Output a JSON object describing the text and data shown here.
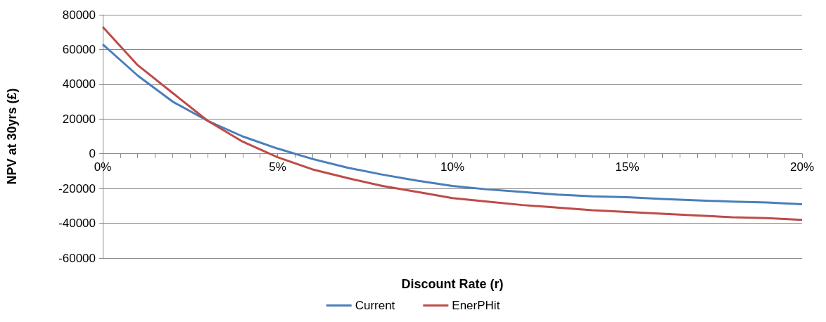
{
  "chart_data": {
    "type": "line",
    "xlabel": "Discount Rate (r)",
    "ylabel": "NPV at 30yrs (£)",
    "x": [
      0,
      0.5,
      1,
      2,
      3,
      4,
      5,
      6,
      7,
      8,
      9,
      10,
      11,
      12,
      13,
      14,
      15,
      16,
      17,
      18,
      19,
      20
    ],
    "series": [
      {
        "name": "Current",
        "color": "#4a7ebb",
        "values": [
          63000,
          54000,
          45000,
          30000,
          19000,
          10000,
          3000,
          -3000,
          -8000,
          -12000,
          -15500,
          -18500,
          -20500,
          -22000,
          -23500,
          -24500,
          -25000,
          -26000,
          -26800,
          -27500,
          -28000,
          -29000
        ]
      },
      {
        "name": "EnerPHit",
        "color": "#be4b48",
        "values": [
          73000,
          62000,
          51000,
          35000,
          19000,
          7000,
          -2000,
          -9000,
          -14000,
          -18500,
          -22000,
          -25500,
          -27500,
          -29500,
          -31000,
          -32500,
          -33500,
          -34500,
          -35500,
          -36500,
          -37000,
          -38000
        ]
      }
    ],
    "xlim": [
      0,
      20
    ],
    "xticks": [
      {
        "value": 0,
        "label": "0%"
      },
      {
        "value": 0.5,
        "label": null
      },
      {
        "value": 1,
        "label": null
      },
      {
        "value": 1.5,
        "label": null
      },
      {
        "value": 2,
        "label": null
      },
      {
        "value": 2.5,
        "label": null
      },
      {
        "value": 3,
        "label": null
      },
      {
        "value": 3.5,
        "label": null
      },
      {
        "value": 4,
        "label": null
      },
      {
        "value": 4.5,
        "label": null
      },
      {
        "value": 5,
        "label": "5%"
      },
      {
        "value": 5.5,
        "label": null
      },
      {
        "value": 6,
        "label": null
      },
      {
        "value": 6.5,
        "label": null
      },
      {
        "value": 7,
        "label": null
      },
      {
        "value": 7.5,
        "label": null
      },
      {
        "value": 8,
        "label": null
      },
      {
        "value": 8.5,
        "label": null
      },
      {
        "value": 9,
        "label": null
      },
      {
        "value": 9.5,
        "label": null
      },
      {
        "value": 10,
        "label": "10%"
      },
      {
        "value": 10.5,
        "label": null
      },
      {
        "value": 11,
        "label": null
      },
      {
        "value": 11.5,
        "label": null
      },
      {
        "value": 12,
        "label": null
      },
      {
        "value": 12.5,
        "label": null
      },
      {
        "value": 13,
        "label": null
      },
      {
        "value": 13.5,
        "label": null
      },
      {
        "value": 14,
        "label": null
      },
      {
        "value": 14.5,
        "label": null
      },
      {
        "value": 15,
        "label": "15%"
      },
      {
        "value": 15.5,
        "label": null
      },
      {
        "value": 16,
        "label": null
      },
      {
        "value": 16.5,
        "label": null
      },
      {
        "value": 17,
        "label": null
      },
      {
        "value": 17.5,
        "label": null
      },
      {
        "value": 18,
        "label": null
      },
      {
        "value": 18.5,
        "label": null
      },
      {
        "value": 19,
        "label": null
      },
      {
        "value": 19.5,
        "label": null
      },
      {
        "value": 20,
        "label": "20%"
      }
    ],
    "ylim": [
      -60000,
      80000
    ],
    "yticks": [
      -60000,
      -40000,
      -20000,
      0,
      20000,
      40000,
      60000,
      80000
    ],
    "grid": "y",
    "legend": "bottom",
    "marker": "none",
    "line_style": "solid"
  }
}
